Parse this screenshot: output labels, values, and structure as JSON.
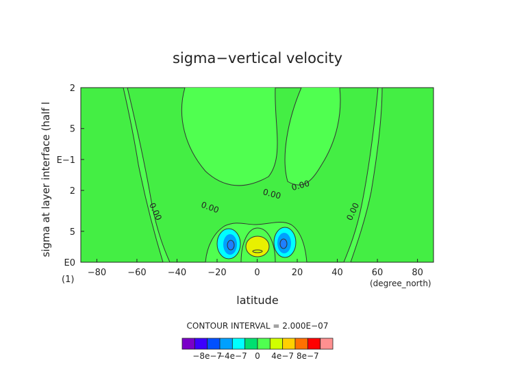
{
  "chart_data": {
    "type": "heatmap",
    "title": "sigma−vertical velocity",
    "xlabel": "latitude",
    "ylabel": "sigma at layer interface (half l",
    "x_unit_label": "(degree_north)",
    "y_unit_label": "(1)",
    "xlim": [
      -88,
      88
    ],
    "ylim_sigma": [
      1.0,
      0.2
    ],
    "y_scale": "log",
    "x_ticks": [
      -80,
      -60,
      -40,
      -20,
      0,
      20,
      40,
      60,
      80
    ],
    "x_tick_labels": [
      "−80",
      "−60",
      "−40",
      "−20",
      "0",
      "20",
      "40",
      "60",
      "80"
    ],
    "y_ticks": [
      1.0,
      0.5,
      0.3,
      0.2
    ],
    "y_tick_labels": [
      "E0",
      "5",
      "2",
      "E−1",
      "5",
      "2"
    ],
    "y_tick_values": [
      1.0,
      0.5,
      0.2,
      0.1,
      0.05,
      0.02
    ],
    "grid": false,
    "contour_interval_text": "CONTOUR INTERVAL = 2.000E−07",
    "contour_labels": [
      {
        "text": "0.00",
        "x": -52,
        "sigma": 0.33
      },
      {
        "text": "0.00",
        "x": -24,
        "sigma": 0.31
      },
      {
        "text": "0.00",
        "x": 7,
        "sigma": 0.23
      },
      {
        "text": "0.00",
        "x": 22,
        "sigma": 0.19
      },
      {
        "text": "0.00",
        "x": 49,
        "sigma": 0.33
      }
    ],
    "features": [
      {
        "name": "updraft-core",
        "x": 0,
        "sigma": 0.8,
        "value": 4e-07
      },
      {
        "name": "downdraft-south",
        "x": -13,
        "sigma": 0.83,
        "value": -5e-07
      },
      {
        "name": "downdraft-north",
        "x": 14,
        "sigma": 0.83,
        "value": -5e-07
      }
    ],
    "colorbar": {
      "colors": [
        "#7a00c8",
        "#3c00ff",
        "#0050ff",
        "#00a0ff",
        "#00ffff",
        "#00e070",
        "#50ff50",
        "#d0ff00",
        "#ffd000",
        "#ff7000",
        "#ff0000",
        "#ff9090"
      ],
      "tick_labels": [
        "−8e−7",
        "−4e−7",
        "0",
        "4e−7",
        "8e−7"
      ],
      "tick_values": [
        -8e-07,
        -4e-07,
        0,
        4e-07,
        8e-07
      ],
      "range": [
        -1.2e-06,
        1.2e-06
      ]
    },
    "colors": {
      "background_field": "#44ee44",
      "positive_core": "#e8f000",
      "negative_core": "#1f7fff",
      "negative_halo": "#00ffff"
    }
  }
}
